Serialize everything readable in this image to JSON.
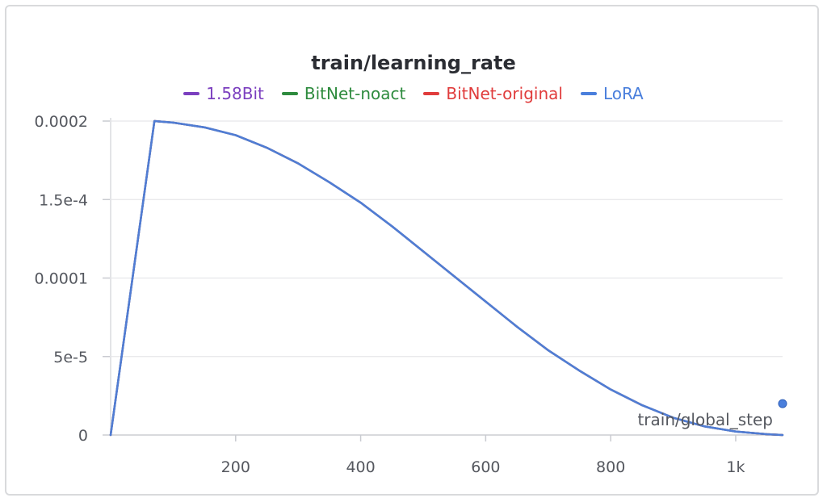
{
  "chart_data": {
    "type": "line",
    "title": "train/learning_rate",
    "xlabel": "train/global_step",
    "ylabel": "",
    "xlim": [
      0,
      1075
    ],
    "ylim": [
      0,
      0.0002
    ],
    "x_ticks": [
      200,
      400,
      600,
      800,
      1000
    ],
    "x_tick_labels": [
      "200",
      "400",
      "600",
      "800",
      "1k"
    ],
    "y_ticks": [
      0,
      5e-05,
      0.0001,
      0.00015,
      0.0002
    ],
    "y_tick_labels": [
      "0",
      "5e-5",
      "0.0001",
      "1.5e-4",
      "0.0002"
    ],
    "grid": true,
    "legend_position": "top-center",
    "series": [
      {
        "name": "1.58Bit",
        "color": "#7b3fbf",
        "x": [
          0,
          70,
          100,
          150,
          200,
          250,
          300,
          350,
          400,
          450,
          500,
          550,
          600,
          650,
          700,
          750,
          800,
          850,
          900,
          950,
          1000,
          1050,
          1075
        ],
        "y": [
          0,
          0.0002,
          0.000199,
          0.000196,
          0.000191,
          0.000183,
          0.000173,
          0.000161,
          0.000148,
          0.000133,
          0.000117,
          0.000101,
          8.5e-05,
          6.9e-05,
          5.4e-05,
          4.1e-05,
          2.9e-05,
          1.9e-05,
          1.1e-05,
          5.5e-06,
          2.2e-06,
          5e-07,
          0
        ]
      },
      {
        "name": "BitNet-noact",
        "color": "#2e8b3e",
        "x": [
          0,
          70,
          100,
          150,
          200,
          250,
          300,
          350,
          400,
          450,
          500,
          550,
          600,
          650,
          700,
          750,
          800,
          850,
          900,
          950,
          1000,
          1050,
          1075
        ],
        "y": [
          0,
          0.0002,
          0.000199,
          0.000196,
          0.000191,
          0.000183,
          0.000173,
          0.000161,
          0.000148,
          0.000133,
          0.000117,
          0.000101,
          8.5e-05,
          6.9e-05,
          5.4e-05,
          4.1e-05,
          2.9e-05,
          1.9e-05,
          1.1e-05,
          5.5e-06,
          2.2e-06,
          5e-07,
          0
        ]
      },
      {
        "name": "BitNet-original",
        "color": "#e03c3c",
        "x": [
          0,
          70,
          100,
          150,
          200,
          250,
          300,
          350,
          400,
          450,
          500,
          550,
          600,
          650,
          700,
          750,
          800,
          850,
          900,
          950,
          1000,
          1050,
          1075
        ],
        "y": [
          0,
          0.0002,
          0.000199,
          0.000196,
          0.000191,
          0.000183,
          0.000173,
          0.000161,
          0.000148,
          0.000133,
          0.000117,
          0.000101,
          8.5e-05,
          6.9e-05,
          5.4e-05,
          4.1e-05,
          2.9e-05,
          1.9e-05,
          1.1e-05,
          5.5e-06,
          2.2e-06,
          5e-07,
          0
        ]
      },
      {
        "name": "LoRA",
        "color": "#4a7fdc",
        "x": [
          0,
          70,
          100,
          150,
          200,
          250,
          300,
          350,
          400,
          450,
          500,
          550,
          600,
          650,
          700,
          750,
          800,
          850,
          900,
          950,
          1000,
          1050,
          1075
        ],
        "y": [
          0,
          0.0002,
          0.000199,
          0.000196,
          0.000191,
          0.000183,
          0.000173,
          0.000161,
          0.000148,
          0.000133,
          0.000117,
          0.000101,
          8.5e-05,
          6.9e-05,
          5.4e-05,
          4.1e-05,
          2.9e-05,
          1.9e-05,
          1.1e-05,
          5.5e-06,
          2.2e-06,
          5e-07,
          0
        ]
      }
    ]
  }
}
